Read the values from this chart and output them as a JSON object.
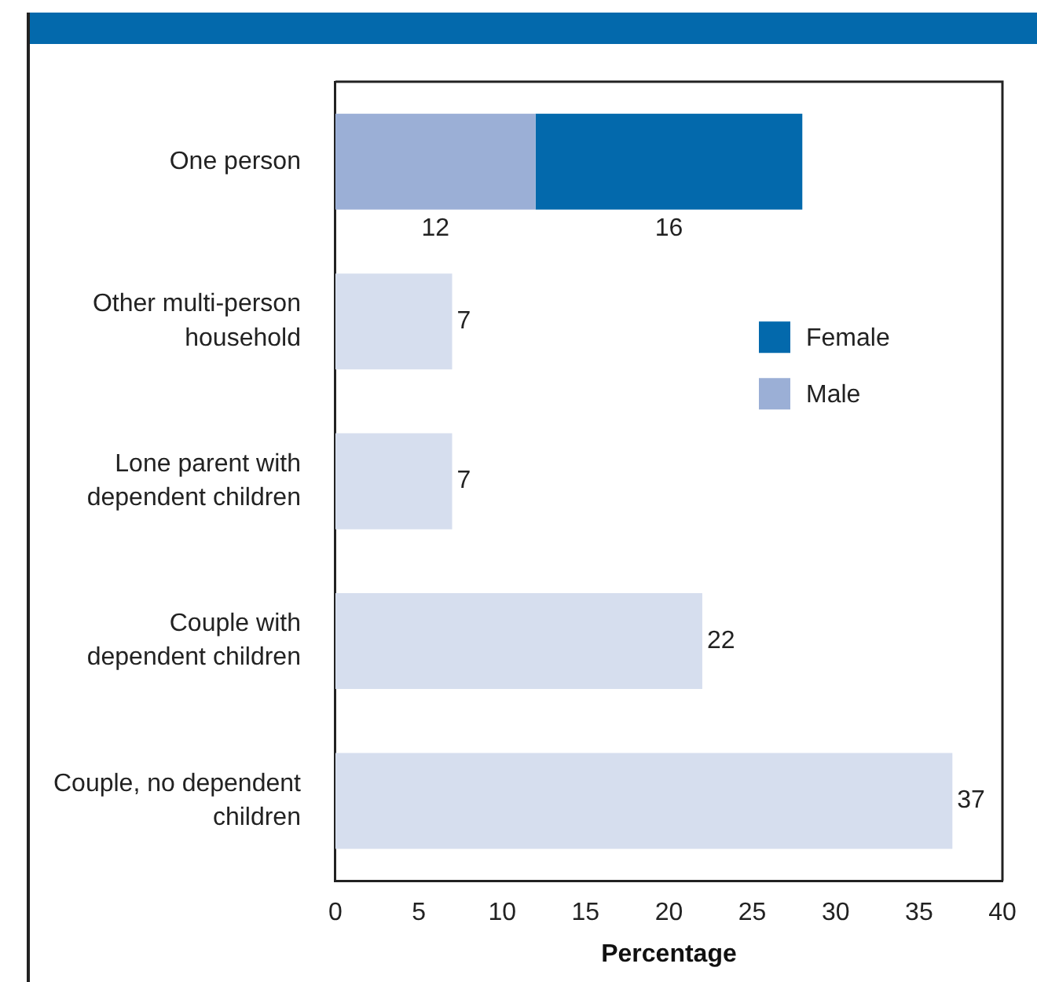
{
  "chart_data": {
    "type": "bar",
    "orientation": "horizontal",
    "stacked": true,
    "xlabel": "Percentage",
    "categories": [
      "One person",
      "Other multi-person\nhousehold",
      "Lone parent with\ndependent children",
      "Couple with\ndependent children",
      "Couple, no dependent\nchildren"
    ],
    "series": [
      {
        "name": "Male",
        "color": "#9bafd6",
        "values": [
          12,
          null,
          null,
          null,
          null
        ]
      },
      {
        "name": "Female",
        "color": "#0369ac",
        "values": [
          16,
          null,
          null,
          null,
          null
        ]
      },
      {
        "color": "#d6deee",
        "values": [
          null,
          7,
          7,
          22,
          37
        ]
      }
    ],
    "xlim": [
      0,
      40
    ],
    "xticks": [
      0,
      5,
      10,
      15,
      20,
      25,
      30,
      35,
      40
    ],
    "grid": false,
    "legend": "right",
    "data_labels": true
  }
}
